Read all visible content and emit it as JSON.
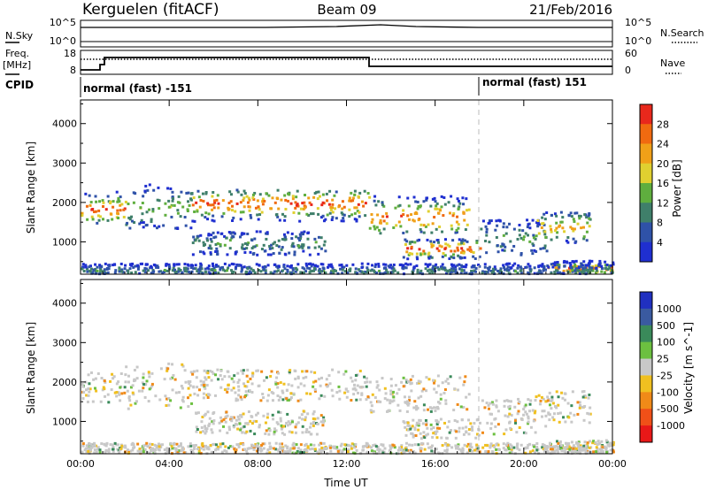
{
  "header": {
    "station": "Kerguelen (fitACF)",
    "beam": "Beam 09",
    "date": "21/Feb/2016"
  },
  "noise_panel": {
    "left_label": "N.Sky",
    "right_label": "N.Search",
    "left_top": "10^5",
    "left_bottom": "10^0",
    "right_top": "10^5",
    "right_bottom": "10^0"
  },
  "freq_panel": {
    "left_label_1": "Freq.",
    "left_label_2": "[MHz]",
    "right_label": "Nave",
    "left_top": "18",
    "left_bottom": "8",
    "right_top": "60",
    "right_bottom": "0"
  },
  "cpid": {
    "label": "CPID",
    "segment_1": "normal (fast) -151",
    "segment_2": "normal (fast) 151"
  },
  "colors": {
    "power": [
      "#1f2fd0",
      "#2f52a8",
      "#3f7f6a",
      "#5fae3e",
      "#e0d030",
      "#f0a018",
      "#f06a10",
      "#e8281c"
    ],
    "velocity": [
      "#2030c0",
      "#3a5aa0",
      "#3a8a5a",
      "#6cc040",
      "#c8c8c8",
      "#f0c020",
      "#f08a18",
      "#f05018",
      "#e81818"
    ]
  },
  "chart_data": [
    {
      "type": "heatmap",
      "title": "Power",
      "xlabel": "",
      "ylabel": "Slant Range [km]",
      "xlim": [
        "00:00",
        "00:00"
      ],
      "ylim": [
        180,
        4600
      ],
      "x_ticks": [
        "00:00",
        "04:00",
        "08:00",
        "12:00",
        "16:00",
        "20:00",
        "00:00"
      ],
      "y_ticks": [
        1000,
        2000,
        3000,
        4000
      ],
      "colorbar": {
        "label": "Power [dB]",
        "ticks": [
          4,
          8,
          12,
          16,
          20,
          24,
          28
        ],
        "range": [
          0,
          32
        ]
      }
    },
    {
      "type": "heatmap",
      "title": "Velocity",
      "xlabel": "Time UT",
      "ylabel": "Slant Range [km]",
      "xlim": [
        "00:00",
        "00:00"
      ],
      "ylim": [
        180,
        4600
      ],
      "x_ticks": [
        "00:00",
        "04:00",
        "08:00",
        "12:00",
        "16:00",
        "20:00",
        "00:00"
      ],
      "y_ticks": [
        1000,
        2000,
        3000,
        4000
      ],
      "colorbar": {
        "label": "Velocity [m s^-1]",
        "ticks": [
          "1000",
          "500",
          "100",
          "25",
          "-25",
          "-100",
          "-500",
          "-1000"
        ]
      }
    }
  ]
}
